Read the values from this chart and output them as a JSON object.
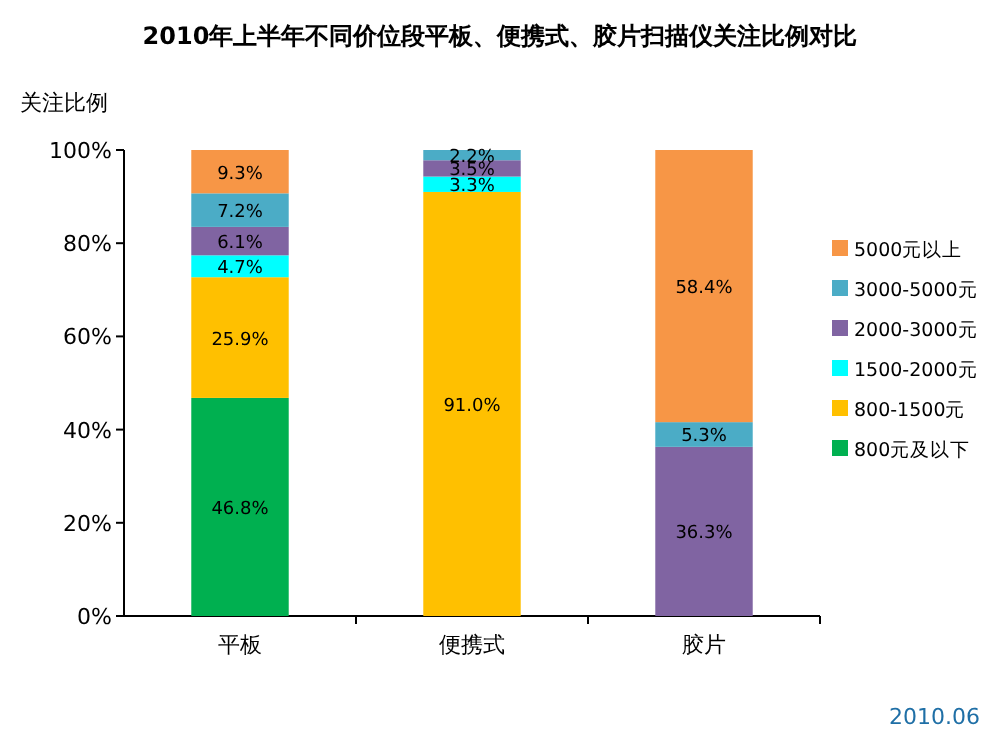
{
  "chart_data": {
    "type": "bar",
    "stacked": true,
    "title": "2010年上半年不同价位段平板、便携式、胶片扫描仪关注比例对比",
    "ylabel": "关注比例",
    "categories": [
      "平板",
      "便携式",
      "胶片"
    ],
    "series": [
      {
        "name": "800元及以下",
        "color": "#00b050",
        "values": [
          46.8,
          0,
          0
        ],
        "value_labels": [
          "46.8%",
          null,
          null
        ]
      },
      {
        "name": "800-1500元",
        "color": "#ffc000",
        "values": [
          25.9,
          91.0,
          0
        ],
        "value_labels": [
          "25.9%",
          "91.0%",
          null
        ]
      },
      {
        "name": "1500-2000元",
        "color": "#00ffff",
        "values": [
          4.7,
          3.3,
          0
        ],
        "value_labels": [
          "4.7%",
          "3.3%",
          null
        ]
      },
      {
        "name": "2000-3000元",
        "color": "#8064a2",
        "values": [
          6.1,
          3.5,
          36.3
        ],
        "value_labels": [
          "6.1%",
          "3.5%",
          "36.3%"
        ]
      },
      {
        "name": "3000-5000元",
        "color": "#4bacc6",
        "values": [
          7.2,
          2.2,
          5.3
        ],
        "value_labels": [
          "7.2%",
          "2.2%",
          "5.3%"
        ]
      },
      {
        "name": "5000元以上",
        "color": "#f79646",
        "values": [
          9.3,
          0,
          58.4
        ],
        "value_labels": [
          "9.3%",
          null,
          "58.4%"
        ]
      }
    ],
    "ylim": [
      0,
      100
    ],
    "yticks": [
      {
        "value": 0,
        "label": "0%"
      },
      {
        "value": 20,
        "label": "20%"
      },
      {
        "value": 40,
        "label": "40%"
      },
      {
        "value": 60,
        "label": "60%"
      },
      {
        "value": 80,
        "label": "80%"
      },
      {
        "value": 100,
        "label": "100%"
      }
    ],
    "legend": "right",
    "annotations": [
      "2010.06"
    ]
  }
}
